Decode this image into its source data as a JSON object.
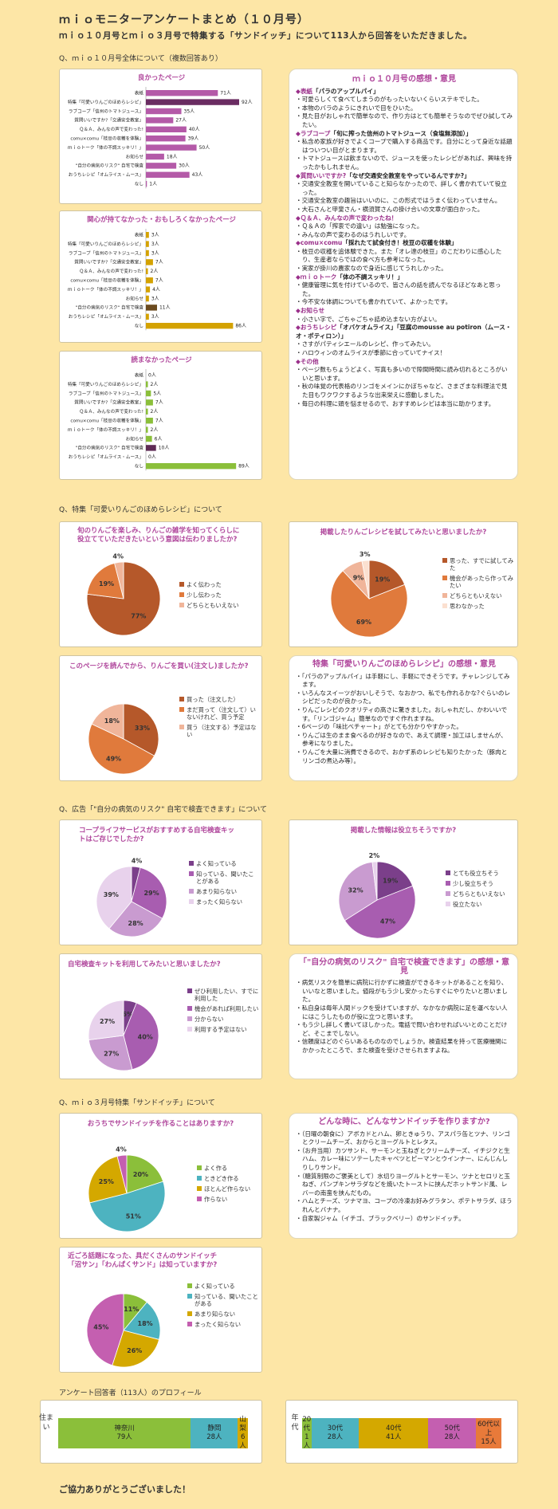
{
  "header": {
    "title": "ｍｉｏモニターアンケートまとめ（１０月号）",
    "subtitle": "ｍｉｏ１０月号とｍｉｏ３月号で特集する「サンドイッチ」について113人から回答をいただきました。"
  },
  "sections": {
    "overall": "Q、ｍｉｏ１０月号全体について（複数回答あり）",
    "apple": "Q、特集「可愛いりんごのほめらレシピ」について",
    "ad": "Q、広告「\"自分の病気のリスク\" 自宅で検査できます」について",
    "sandwich": "Q、ｍｉｏ３月号特集「サンドイッチ」について",
    "profile": "アンケート回答者（113人）のプロフィール"
  },
  "footer": "ご協力ありがとうございました！",
  "chart_data": [
    {
      "type": "bar",
      "title": "良かったページ",
      "color": "#b45aa8",
      "highlight_color": "#6a2c62",
      "categories": [
        "表紙",
        "特集「可愛いりんごのほめらレシピ」",
        "ラブコープ「信州のトマトジュース」",
        "質問いいですか?「交通安全教室」",
        "Ｑ＆Ａ、みんなの声で変わった!",
        "comu×comu「枝豆の収穫を体験」",
        "ｍｉｏトーク「体の不調スッキリ！」",
        "お知らせ",
        "\"自分の病気のリスク\" 自宅で検査",
        "おうちレシピ「オムライス・ムース」",
        "なし"
      ],
      "values": [
        71,
        92,
        35,
        27,
        40,
        39,
        50,
        18,
        30,
        43,
        1
      ],
      "labels": [
        "71人",
        "92人",
        "35人",
        "27人",
        "40人",
        "39人",
        "50人",
        "18人",
        "30人",
        "43人",
        "1人"
      ]
    },
    {
      "type": "bar",
      "title": "関心が持てなかった・おもしろくなかったページ",
      "color": "#d4a200",
      "highlight_color": "#6b4a1f",
      "categories": [
        "表紙",
        "特集「可愛いりんごのほめらレシピ」",
        "ラブコープ「信州のトマトジュース」",
        "質問いいですか?「交通安全教室」",
        "Ｑ＆Ａ、みんなの声で変わった!",
        "comu×comu「枝豆の収穫を体験」",
        "ｍｉｏトーク「体の不調スッキリ！」",
        "お知らせ",
        "\"自分の病気のリスク\" 自宅で検査",
        "おうちレシピ「オムライス・ムース」",
        "なし"
      ],
      "values": [
        3,
        3,
        3,
        7,
        2,
        7,
        4,
        3,
        11,
        3,
        86
      ],
      "labels": [
        "3人",
        "3人",
        "3人",
        "7人",
        "2人",
        "7人",
        "4人",
        "3人",
        "11人",
        "3人",
        "86人"
      ]
    },
    {
      "type": "bar",
      "title": "読まなかったページ",
      "color": "#8bbf3a",
      "highlight_color": "#5e2a55",
      "categories": [
        "表紙",
        "特集「可愛いりんごのほめらレシピ」",
        "ラブコープ「信州のトマトジュース」",
        "質問いいですか?「交通安全教室」",
        "Ｑ＆Ａ、みんなの声で変わった!",
        "comu×comu「枝豆の収穫を体験」",
        "ｍｉｏトーク「体の不調スッキリ！」",
        "お知らせ",
        "\"自分の病気のリスク\" 自宅で検査",
        "おうちレシピ「オムライス・ムース」",
        "なし"
      ],
      "values": [
        0,
        2,
        5,
        7,
        2,
        7,
        2,
        6,
        10,
        0,
        89
      ],
      "labels": [
        "0人",
        "2人",
        "5人",
        "7人",
        "2人",
        "7人",
        "2人",
        "6人",
        "10人",
        "0人",
        "89人"
      ]
    },
    {
      "type": "pie",
      "title": "旬のりんごを楽しみ、りんごの雑学を知ってくらしに役立てていただきたいという意図は伝わりましたか?",
      "categories": [
        "よく伝わった",
        "少し伝わった",
        "どちらともいえない"
      ],
      "values": [
        77,
        19,
        4
      ],
      "colors": [
        "#b5582a",
        "#e07a3c",
        "#f0b59a"
      ]
    },
    {
      "type": "pie",
      "title": "掲載したりんごレシピを試してみたいと思いましたか?",
      "categories": [
        "思った、すでに試してみた",
        "機会があったら作ってみたい",
        "どちらともいえない",
        "思わなかった"
      ],
      "values": [
        19,
        69,
        9,
        3
      ],
      "colors": [
        "#b5582a",
        "#e07a3c",
        "#f0b59a",
        "#fbe0d0"
      ]
    },
    {
      "type": "pie",
      "title": "このページを読んでから、りんごを買い(注文し)ましたか?",
      "categories": [
        "買った（注文した）",
        "まだ買って（注文して）いないけれど、買う予定",
        "買う（注文する）予定はない"
      ],
      "values": [
        33,
        49,
        18
      ],
      "colors": [
        "#b5582a",
        "#e07a3c",
        "#f0b59a"
      ]
    },
    {
      "type": "pie",
      "title": "コープライフサービスがおすすめする自宅検査キットはご存じでしたか?",
      "categories": [
        "よく知っている",
        "知っている、聞いたことがある",
        "あまり知らない",
        "まったく知らない"
      ],
      "values": [
        4,
        29,
        28,
        39
      ],
      "colors": [
        "#7b3f8a",
        "#a85db0",
        "#c99bd0",
        "#e8d2ec"
      ]
    },
    {
      "type": "pie",
      "title": "掲載した情報は役立ちそうですか?",
      "categories": [
        "とても役立ちそう",
        "少し役立ちそう",
        "どちらともいえない",
        "役立たない"
      ],
      "values": [
        19,
        47,
        32,
        2
      ],
      "colors": [
        "#7b3f8a",
        "#a85db0",
        "#c99bd0",
        "#e8d2ec"
      ]
    },
    {
      "type": "pie",
      "title": "自宅検査キットを利用してみたいと思いましたか?",
      "categories": [
        "ぜひ利用したい、すでに利用した",
        "機会があれば利用したい",
        "分からない",
        "利用する予定はない"
      ],
      "values": [
        6,
        40,
        27,
        27
      ],
      "colors": [
        "#7b3f8a",
        "#a85db0",
        "#c99bd0",
        "#e8d2ec"
      ]
    },
    {
      "type": "pie",
      "title": "おうちでサンドイッチを作ることはありますか?",
      "categories": [
        "よく作る",
        "ときどき作る",
        "ほとんど作らない",
        "作らない"
      ],
      "values": [
        20,
        51,
        25,
        4
      ],
      "colors": [
        "#8bbf3a",
        "#4db3c0",
        "#d4a800",
        "#c45fb0"
      ]
    },
    {
      "type": "pie",
      "title": "近ごろ話題になった、具だくさんのサンドイッチ「沼サン」「わんぱくサンド」は知っていますか?",
      "categories": [
        "よく知っている",
        "知っている、聞いたことがある",
        "あまり知らない",
        "まったく知らない"
      ],
      "values": [
        11,
        18,
        26,
        45
      ],
      "colors": [
        "#8bbf3a",
        "#4db3c0",
        "#d4a800",
        "#c45fb0"
      ]
    }
  ],
  "profile": {
    "residence_label": "住まい",
    "residence": [
      {
        "name": "神奈川",
        "count": "79人",
        "value": 79,
        "color": "#8bbf3a"
      },
      {
        "name": "静岡",
        "count": "28人",
        "value": 28,
        "color": "#4db3c0"
      },
      {
        "name": "山梨",
        "count": "6人",
        "value": 6,
        "color": "#d4a800"
      }
    ],
    "age_label": "年代",
    "age": [
      {
        "name": "20代",
        "count": "1人",
        "value": 1,
        "color": "#8bbf3a"
      },
      {
        "name": "30代",
        "count": "28人",
        "value": 28,
        "color": "#4db3c0"
      },
      {
        "name": "40代",
        "count": "41人",
        "value": 41,
        "color": "#d4a800"
      },
      {
        "name": "50代",
        "count": "28人",
        "value": 28,
        "color": "#c45fb0"
      },
      {
        "name": "60代以上",
        "count": "15人",
        "value": 15,
        "color": "#e87a3a"
      }
    ]
  },
  "comments": {
    "mio": {
      "title": "ｍｉｏ１０月号の感想・意見",
      "blocks": [
        {
          "head": "◆表紙",
          "sub": "「パラのアップルパイ」",
          "items": [
            "可愛らしくて食べてしまうのがもったいないくらいステキでした。",
            "本物のバラのようにきれいで目をひいた。",
            "見た目がおしゃれで簡単なので、作り方はとても簡単そうなのでぜひ試してみたい。"
          ]
        },
        {
          "head": "◆ラブコープ",
          "sub": "「旬に搾った信州のトマトジュース（食塩無添加）」",
          "items": [
            "私含め家族が好きでよくコープで購入する商品です。自分にとって身近な話題はついつい目がとまります。",
            "トマトジュースは飲まないので、ジュースを使ったレシピがあれば、興味を持ったかもしれません。"
          ]
        },
        {
          "head": "◆質問いいですか?",
          "sub": "「なぜ交通安全教室をやっているんですか?」",
          "items": [
            "交通安全教室を開いていること知らなかったので、詳しく書かれていて役立った。",
            "交通安全教室の趣旨はいいのに、この形式ではうまく伝わっていません。",
            "大石さんと甲斐さん・横須賀さんの掛け合いの文章が面白かった。"
          ]
        },
        {
          "head": "◆Ｑ＆Ａ、みんなの声で変わったね！",
          "sub": "",
          "items": [
            "Ｑ＆Ａの「搾衷での違い」は勉強になった。",
            "みんなの声で変わるのはうれしいです。"
          ]
        },
        {
          "head": "◆comu×comu",
          "sub": "「採れたて試食付き！枝豆の収穫を体験」",
          "items": [
            "枝豆の収穫を追体験できた。また「オレ達の枝豆」のこだわりに感心したり、生産者ならではの食べ方も参考になった。",
            "実家が掛川の農家なので身近に感じてうれしかった。"
          ]
        },
        {
          "head": "◆ｍｉｏトーク",
          "sub": "「体の不調スッキリ！」",
          "items": [
            "健康管理に気を付けているので、皆さんの話を読んでなるほどなあと思った。",
            "今不安な体調についても書かれていて、よかったです。"
          ]
        },
        {
          "head": "◆お知らせ",
          "sub": "",
          "items": [
            "小さい字で、ごちゃごちゃ詰め込まない方がよい。"
          ]
        },
        {
          "head": "◆おうちレシピ",
          "sub": "「オバケオムライス」「豆腐のmousse au potiron（ムース・オ・ポティロン）」",
          "items": [
            "さすがパティシエールのレシピ、作ってみたい。",
            "ハロウィンのオムライスが季節に合っていてナイス！"
          ]
        },
        {
          "head": "◆その他",
          "sub": "",
          "items": [
            "ページ数もちょうどよく、写真も多いので隙間時間に読み切れるところがいいと思います。",
            "秋の味覚の代表格のリンゴをメインにかぼちゃなど、さまざまな料理法で見た目もワクワクするような出来栄えに感動しました。",
            "毎日の料理に頭を悩ませるので、おすすめレシピは本当に助かります。"
          ]
        }
      ]
    },
    "apple": {
      "title": "特集「可愛いりんごのほめらレシピ」の感想・意見",
      "items": [
        "「パラのアップルパイ」は手軽にし、手軽にできそうです。チャレンジしてみます。",
        "いろんなスイーツがおいしそうで、なおかつ、私でも作れるかな?ぐらいのレシピだったのが良かった。",
        "りんごレシピのクオリティの高さに驚きました。おしゃれだし、かわいいです。「リンゴジャム」簡単なのですぐ作れますね。",
        "6ページの「味比べチャート」がとても分かりやすかった。",
        "りんごは生のまま食べるのが好きなので、あえて調理・加工はしませんが、参考になりました。",
        "りんごを大量に消費できるので、おかず系のレシピも知りたかった（豚肉とリンゴの煮込み等）。"
      ]
    },
    "ad": {
      "title": "「\"自分の病気のリスク\" 自宅で検査できます」の感想・意見",
      "items": [
        "病気リスクを簡単に病院に行かずに検査ができるキットがあることを知り、いいなと思いました。値段がもう少し安かったらすぐにやりたいと思いました。",
        "私自身は毎年人間ドックを受けていますが、なかなか病院に足を運べない人にはこうしたものが役に立つと思います。",
        "もう少し詳しく書いてほしかった。電話で問い合わせればいいとのことだけど、そこまでしない。",
        "信頼度はどのぐらいあるものなのでしょうか。検査結果を持って医療機関にかかったところで、また検査を受けさせられますよね。"
      ]
    },
    "sandwich": {
      "title": "どんな時に、どんなサンドイッチを作りますか?",
      "items": [
        "（日曜の朝食に）アボカドとハム、卵ときゅうり、アスパラ缶とツナ、リンゴとクリームチーズ、おからとヨーグルトとレタス。",
        "（お弁当用）カツサンド、サーモンと玉ねぎとクリームチーズ、イチジクと生ハム、カレー味にソテーしたキャベツとピーマンとウインナー、にんじんしりしりサンド。",
        "（糖質制限のご褒美として）水切りヨーグルトとサーモン、ツナとセロリと玉ねぎ、パンプキンサラダなどを焼いたトーストに挟んだホットサンド風、レバーの南蛮を挟んだもの。",
        "ハムとチーズ、ツナマヨ、コープの冷凍お好みグラタン、ポテトサラダ、ほうれんとバナナ。",
        "自家製ジャム（イチゴ、ブラックベリー）のサンドイッチ。"
      ]
    }
  }
}
